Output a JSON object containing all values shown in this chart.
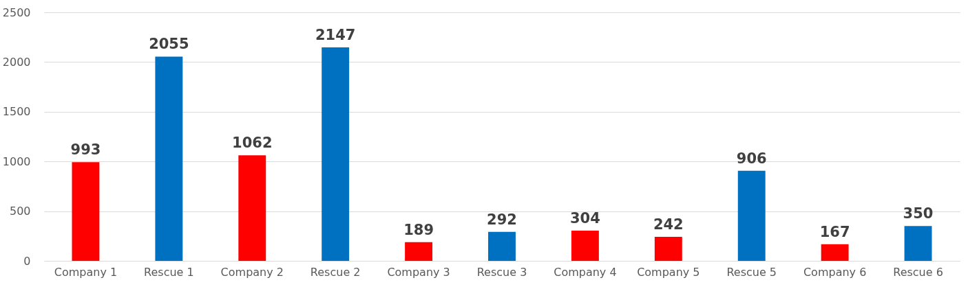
{
  "chart_data": {
    "type": "bar",
    "categories": [
      "Company 1",
      "Rescue 1",
      "Company 2",
      "Rescue 2",
      "Company 3",
      "Rescue 3",
      "Company 4",
      "Company 5",
      "Rescue 5",
      "Company 6",
      "Rescue 6"
    ],
    "values": [
      993,
      2055,
      1062,
      2147,
      189,
      292,
      304,
      242,
      906,
      167,
      350
    ],
    "colors": [
      "#ff0000",
      "#0070c0",
      "#ff0000",
      "#0070c0",
      "#ff0000",
      "#0070c0",
      "#ff0000",
      "#ff0000",
      "#0070c0",
      "#ff0000",
      "#0070c0"
    ],
    "ylim": [
      0,
      2500
    ],
    "yticks": [
      0,
      500,
      1000,
      1500,
      2000,
      2500
    ],
    "grid": "y",
    "data_labels": true
  }
}
